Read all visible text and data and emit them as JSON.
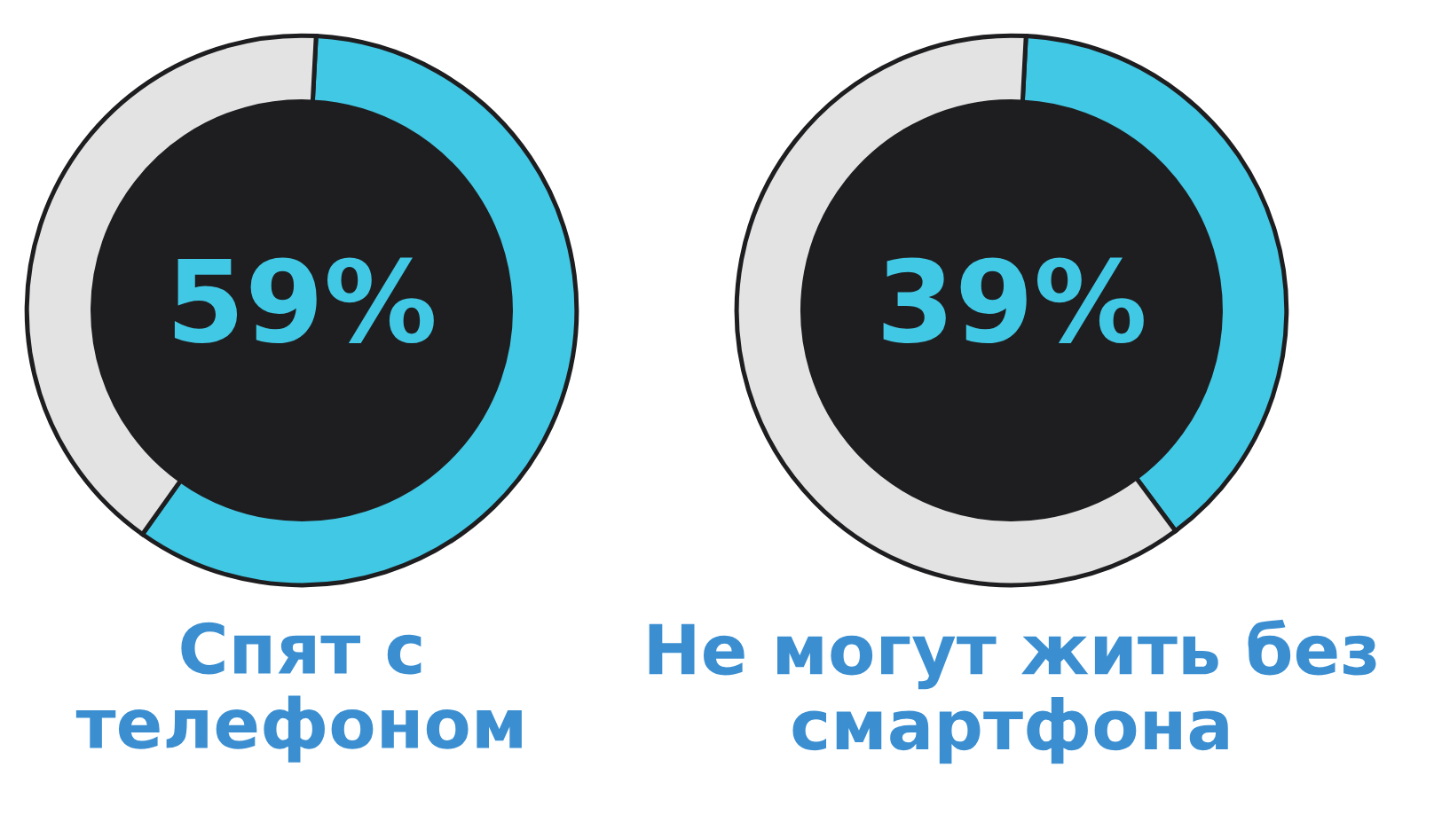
{
  "chart_data": [
    {
      "type": "donut",
      "title": "Спят с\nтелефоном",
      "categories": [
        null,
        null
      ],
      "values": [
        59,
        41
      ],
      "colors": [
        "#41c8e5",
        "#e3e3e3"
      ],
      "value_labels": [
        "59%",
        null
      ]
    },
    {
      "type": "donut",
      "title": "Не могут жить без\nсмартфона",
      "categories": [
        null,
        null
      ],
      "values": [
        39,
        61
      ],
      "colors": [
        "#41c8e5",
        "#e3e3e3"
      ],
      "value_labels": [
        "39%",
        null
      ]
    }
  ]
}
